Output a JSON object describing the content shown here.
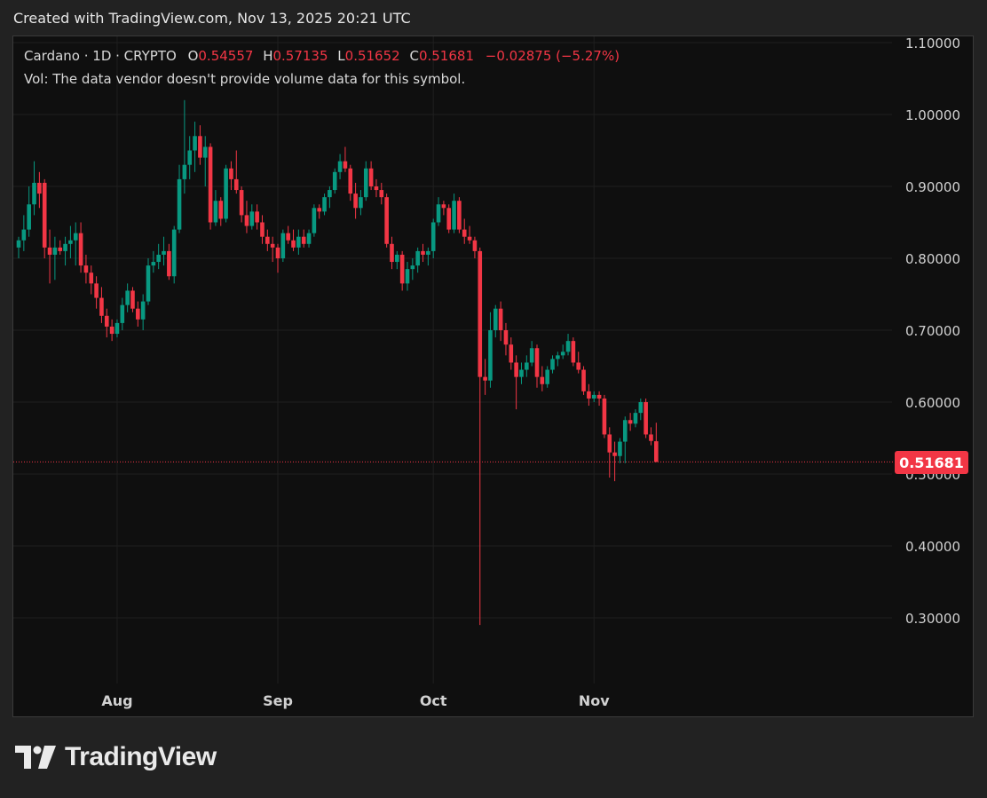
{
  "header": {
    "created_text": "Created with TradingView.com, Nov 13, 2025 20:21 UTC"
  },
  "legend": {
    "symbol_text": "Cardano · 1D · CRYPTO",
    "o_label": "O",
    "o_value": "0.54557",
    "h_label": "H",
    "h_value": "0.57135",
    "l_label": "L",
    "l_value": "0.51652",
    "c_label": "C",
    "c_value": "0.51681",
    "change": "−0.02875 (−5.27%)",
    "volume_note": "Vol: The data vendor doesn't provide volume data for this symbol."
  },
  "last_price_label": "0.51681",
  "brand": {
    "name": "TradingView"
  },
  "colors": {
    "up": "#089981",
    "down": "#f23645",
    "background": "#0f0f0f",
    "grid": "#1f1f1f",
    "axis_text": "#d1d1d1"
  },
  "chart_data": {
    "type": "candlestick",
    "title": "Cardano · 1D · CRYPTO",
    "ylim": [
      0.2,
      1.1
    ],
    "y_ticks": [
      "1.10000",
      "1.00000",
      "0.90000",
      "0.80000",
      "0.70000",
      "0.60000",
      "0.50000",
      "0.40000",
      "0.30000"
    ],
    "x_ticks": [
      {
        "label": "Aug",
        "date": "2025-08-01"
      },
      {
        "label": "Sep",
        "date": "2025-09-01"
      },
      {
        "label": "Oct",
        "date": "2025-10-01"
      },
      {
        "label": "Nov",
        "date": "2025-11-01"
      }
    ],
    "last_price": 0.51681,
    "candles": [
      [
        "2025-07-13",
        0.815,
        0.83,
        0.8,
        0.825
      ],
      [
        "2025-07-14",
        0.825,
        0.86,
        0.81,
        0.84
      ],
      [
        "2025-07-15",
        0.84,
        0.9,
        0.83,
        0.875
      ],
      [
        "2025-07-16",
        0.875,
        0.935,
        0.86,
        0.905
      ],
      [
        "2025-07-17",
        0.905,
        0.92,
        0.87,
        0.89
      ],
      [
        "2025-07-18",
        0.905,
        0.91,
        0.8,
        0.815
      ],
      [
        "2025-07-19",
        0.815,
        0.84,
        0.765,
        0.805
      ],
      [
        "2025-07-20",
        0.805,
        0.83,
        0.77,
        0.815
      ],
      [
        "2025-07-21",
        0.815,
        0.825,
        0.805,
        0.81
      ],
      [
        "2025-07-22",
        0.81,
        0.83,
        0.79,
        0.82
      ],
      [
        "2025-07-23",
        0.82,
        0.845,
        0.8,
        0.825
      ],
      [
        "2025-07-24",
        0.825,
        0.85,
        0.79,
        0.835
      ],
      [
        "2025-07-25",
        0.835,
        0.85,
        0.78,
        0.79
      ],
      [
        "2025-07-26",
        0.79,
        0.805,
        0.765,
        0.78
      ],
      [
        "2025-07-27",
        0.78,
        0.79,
        0.75,
        0.765
      ],
      [
        "2025-07-28",
        0.765,
        0.775,
        0.73,
        0.745
      ],
      [
        "2025-07-29",
        0.745,
        0.76,
        0.71,
        0.72
      ],
      [
        "2025-07-30",
        0.72,
        0.73,
        0.69,
        0.705
      ],
      [
        "2025-07-31",
        0.705,
        0.715,
        0.685,
        0.695
      ],
      [
        "2025-08-01",
        0.695,
        0.715,
        0.69,
        0.71
      ],
      [
        "2025-08-02",
        0.71,
        0.745,
        0.7,
        0.735
      ],
      [
        "2025-08-03",
        0.735,
        0.765,
        0.725,
        0.755
      ],
      [
        "2025-08-04",
        0.755,
        0.76,
        0.725,
        0.73
      ],
      [
        "2025-08-05",
        0.73,
        0.74,
        0.705,
        0.715
      ],
      [
        "2025-08-06",
        0.715,
        0.75,
        0.7,
        0.74
      ],
      [
        "2025-08-07",
        0.74,
        0.8,
        0.735,
        0.79
      ],
      [
        "2025-08-08",
        0.79,
        0.81,
        0.78,
        0.795
      ],
      [
        "2025-08-09",
        0.795,
        0.82,
        0.785,
        0.805
      ],
      [
        "2025-08-10",
        0.805,
        0.83,
        0.79,
        0.81
      ],
      [
        "2025-08-11",
        0.81,
        0.82,
        0.77,
        0.775
      ],
      [
        "2025-08-12",
        0.775,
        0.845,
        0.765,
        0.84
      ],
      [
        "2025-08-13",
        0.84,
        0.93,
        0.835,
        0.91
      ],
      [
        "2025-08-14",
        0.91,
        1.02,
        0.89,
        0.93
      ],
      [
        "2025-08-15",
        0.93,
        0.97,
        0.91,
        0.95
      ],
      [
        "2025-08-16",
        0.95,
        0.99,
        0.92,
        0.97
      ],
      [
        "2025-08-17",
        0.97,
        0.985,
        0.93,
        0.94
      ],
      [
        "2025-08-18",
        0.94,
        0.97,
        0.9,
        0.955
      ],
      [
        "2025-08-19",
        0.955,
        0.96,
        0.84,
        0.85
      ],
      [
        "2025-08-20",
        0.85,
        0.895,
        0.845,
        0.88
      ],
      [
        "2025-08-21",
        0.88,
        0.885,
        0.845,
        0.855
      ],
      [
        "2025-08-22",
        0.855,
        0.93,
        0.85,
        0.925
      ],
      [
        "2025-08-23",
        0.925,
        0.935,
        0.895,
        0.91
      ],
      [
        "2025-08-24",
        0.91,
        0.95,
        0.89,
        0.895
      ],
      [
        "2025-08-25",
        0.895,
        0.9,
        0.85,
        0.86
      ],
      [
        "2025-08-26",
        0.86,
        0.88,
        0.835,
        0.845
      ],
      [
        "2025-08-27",
        0.845,
        0.875,
        0.84,
        0.865
      ],
      [
        "2025-08-28",
        0.865,
        0.875,
        0.84,
        0.85
      ],
      [
        "2025-08-29",
        0.85,
        0.86,
        0.82,
        0.83
      ],
      [
        "2025-08-30",
        0.83,
        0.84,
        0.81,
        0.82
      ],
      [
        "2025-08-31",
        0.82,
        0.83,
        0.795,
        0.815
      ],
      [
        "2025-09-01",
        0.815,
        0.82,
        0.78,
        0.8
      ],
      [
        "2025-09-02",
        0.8,
        0.84,
        0.795,
        0.835
      ],
      [
        "2025-09-03",
        0.835,
        0.845,
        0.82,
        0.825
      ],
      [
        "2025-09-04",
        0.825,
        0.84,
        0.81,
        0.815
      ],
      [
        "2025-09-05",
        0.815,
        0.84,
        0.805,
        0.83
      ],
      [
        "2025-09-06",
        0.83,
        0.84,
        0.815,
        0.82
      ],
      [
        "2025-09-07",
        0.82,
        0.84,
        0.815,
        0.835
      ],
      [
        "2025-09-08",
        0.835,
        0.875,
        0.83,
        0.87
      ],
      [
        "2025-09-09",
        0.87,
        0.875,
        0.855,
        0.865
      ],
      [
        "2025-09-10",
        0.865,
        0.89,
        0.86,
        0.885
      ],
      [
        "2025-09-11",
        0.885,
        0.9,
        0.87,
        0.895
      ],
      [
        "2025-09-12",
        0.895,
        0.925,
        0.89,
        0.92
      ],
      [
        "2025-09-13",
        0.92,
        0.945,
        0.91,
        0.935
      ],
      [
        "2025-09-14",
        0.935,
        0.955,
        0.92,
        0.925
      ],
      [
        "2025-09-15",
        0.925,
        0.93,
        0.88,
        0.89
      ],
      [
        "2025-09-16",
        0.89,
        0.905,
        0.855,
        0.87
      ],
      [
        "2025-09-17",
        0.87,
        0.895,
        0.86,
        0.885
      ],
      [
        "2025-09-18",
        0.885,
        0.935,
        0.88,
        0.925
      ],
      [
        "2025-09-19",
        0.925,
        0.935,
        0.895,
        0.9
      ],
      [
        "2025-09-20",
        0.9,
        0.91,
        0.885,
        0.895
      ],
      [
        "2025-09-21",
        0.895,
        0.905,
        0.875,
        0.885
      ],
      [
        "2025-09-22",
        0.885,
        0.89,
        0.815,
        0.82
      ],
      [
        "2025-09-23",
        0.82,
        0.83,
        0.785,
        0.795
      ],
      [
        "2025-09-24",
        0.795,
        0.81,
        0.785,
        0.805
      ],
      [
        "2025-09-25",
        0.805,
        0.81,
        0.755,
        0.765
      ],
      [
        "2025-09-26",
        0.765,
        0.795,
        0.755,
        0.785
      ],
      [
        "2025-09-27",
        0.785,
        0.8,
        0.77,
        0.79
      ],
      [
        "2025-09-28",
        0.79,
        0.815,
        0.78,
        0.81
      ],
      [
        "2025-09-29",
        0.81,
        0.82,
        0.795,
        0.805
      ],
      [
        "2025-09-30",
        0.805,
        0.815,
        0.79,
        0.81
      ],
      [
        "2025-10-01",
        0.81,
        0.855,
        0.8,
        0.85
      ],
      [
        "2025-10-02",
        0.85,
        0.885,
        0.845,
        0.875
      ],
      [
        "2025-10-03",
        0.875,
        0.88,
        0.86,
        0.87
      ],
      [
        "2025-10-04",
        0.87,
        0.875,
        0.835,
        0.84
      ],
      [
        "2025-10-05",
        0.84,
        0.89,
        0.835,
        0.88
      ],
      [
        "2025-10-06",
        0.88,
        0.885,
        0.835,
        0.84
      ],
      [
        "2025-10-07",
        0.84,
        0.855,
        0.82,
        0.83
      ],
      [
        "2025-10-08",
        0.83,
        0.845,
        0.82,
        0.825
      ],
      [
        "2025-10-09",
        0.825,
        0.83,
        0.8,
        0.81
      ],
      [
        "2025-10-10",
        0.81,
        0.815,
        0.29,
        0.635
      ],
      [
        "2025-10-11",
        0.635,
        0.66,
        0.61,
        0.63
      ],
      [
        "2025-10-12",
        0.63,
        0.725,
        0.62,
        0.7
      ],
      [
        "2025-10-13",
        0.7,
        0.735,
        0.69,
        0.73
      ],
      [
        "2025-10-14",
        0.73,
        0.74,
        0.685,
        0.7
      ],
      [
        "2025-10-15",
        0.7,
        0.71,
        0.665,
        0.68
      ],
      [
        "2025-10-16",
        0.68,
        0.69,
        0.645,
        0.655
      ],
      [
        "2025-10-17",
        0.655,
        0.665,
        0.59,
        0.635
      ],
      [
        "2025-10-18",
        0.635,
        0.655,
        0.625,
        0.645
      ],
      [
        "2025-10-19",
        0.645,
        0.665,
        0.635,
        0.655
      ],
      [
        "2025-10-20",
        0.655,
        0.685,
        0.65,
        0.675
      ],
      [
        "2025-10-21",
        0.675,
        0.68,
        0.62,
        0.635
      ],
      [
        "2025-10-22",
        0.635,
        0.65,
        0.615,
        0.625
      ],
      [
        "2025-10-23",
        0.625,
        0.65,
        0.62,
        0.645
      ],
      [
        "2025-10-24",
        0.645,
        0.665,
        0.64,
        0.66
      ],
      [
        "2025-10-25",
        0.66,
        0.67,
        0.65,
        0.665
      ],
      [
        "2025-10-26",
        0.665,
        0.68,
        0.66,
        0.67
      ],
      [
        "2025-10-27",
        0.67,
        0.695,
        0.665,
        0.685
      ],
      [
        "2025-10-28",
        0.685,
        0.69,
        0.65,
        0.655
      ],
      [
        "2025-10-29",
        0.655,
        0.67,
        0.64,
        0.645
      ],
      [
        "2025-10-30",
        0.645,
        0.65,
        0.61,
        0.615
      ],
      [
        "2025-10-31",
        0.615,
        0.625,
        0.595,
        0.605
      ],
      [
        "2025-11-01",
        0.605,
        0.615,
        0.6,
        0.61
      ],
      [
        "2025-11-02",
        0.61,
        0.615,
        0.595,
        0.605
      ],
      [
        "2025-11-03",
        0.605,
        0.61,
        0.55,
        0.555
      ],
      [
        "2025-11-04",
        0.555,
        0.565,
        0.495,
        0.53
      ],
      [
        "2025-11-05",
        0.53,
        0.545,
        0.49,
        0.525
      ],
      [
        "2025-11-06",
        0.525,
        0.55,
        0.515,
        0.545
      ],
      [
        "2025-11-07",
        0.545,
        0.58,
        0.515,
        0.575
      ],
      [
        "2025-11-08",
        0.575,
        0.585,
        0.56,
        0.57
      ],
      [
        "2025-11-09",
        0.57,
        0.59,
        0.565,
        0.585
      ],
      [
        "2025-11-10",
        0.585,
        0.605,
        0.575,
        0.6
      ],
      [
        "2025-11-11",
        0.6,
        0.605,
        0.55,
        0.555
      ],
      [
        "2025-11-12",
        0.555,
        0.565,
        0.54,
        0.546
      ],
      [
        "2025-11-13",
        0.54557,
        0.57135,
        0.51652,
        0.51681
      ]
    ]
  }
}
